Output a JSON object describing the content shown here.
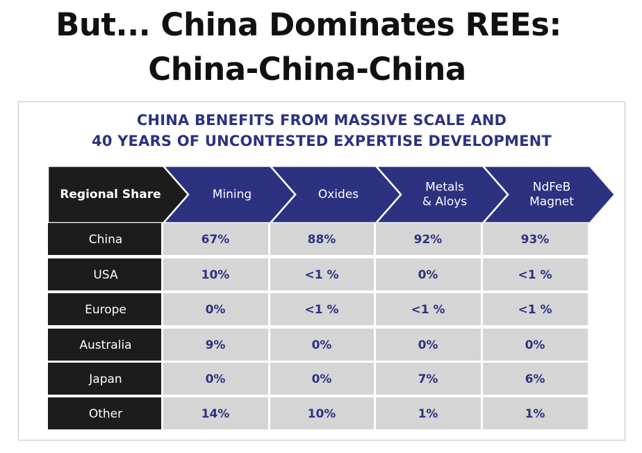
{
  "title": {
    "line1": "But... China Dominates REEs:",
    "line2": "China-China-China"
  },
  "panel": {
    "heading_line1": "CHINA BENEFITS FROM MASSIVE SCALE AND",
    "heading_line2": "40 YEARS OF UNCONTESTED EXPERTISE DEVELOPMENT"
  },
  "colors": {
    "navy": "#2c3280",
    "dark": "#1c1c1c",
    "cell": "#d5d5d5",
    "title": "#111111"
  },
  "chart_data": {
    "type": "table",
    "title": "CHINA BENEFITS FROM MASSIVE SCALE AND 40 YEARS OF UNCONTESTED EXPERTISE DEVELOPMENT",
    "row_header_label": "Regional Share",
    "columns": [
      {
        "label_lines": [
          "Mining"
        ]
      },
      {
        "label_lines": [
          "Oxides"
        ]
      },
      {
        "label_lines": [
          "Metals",
          "& Aloys"
        ]
      },
      {
        "label_lines": [
          "NdFeB",
          "Magnet"
        ]
      }
    ],
    "rows": [
      {
        "region": "China",
        "values": [
          "67%",
          "88%",
          "92%",
          "93%"
        ]
      },
      {
        "region": "USA",
        "values": [
          "10%",
          "<1 %",
          "0%",
          "<1 %"
        ]
      },
      {
        "region": "Europe",
        "values": [
          "0%",
          "<1 %",
          "<1 %",
          "<1 %"
        ]
      },
      {
        "region": "Australia",
        "values": [
          "9%",
          "0%",
          "0%",
          "0%"
        ]
      },
      {
        "region": "Japan",
        "values": [
          "0%",
          "0%",
          "7%",
          "6%"
        ]
      },
      {
        "region": "Other",
        "values": [
          "14%",
          "10%",
          "1%",
          "1%"
        ]
      }
    ]
  }
}
